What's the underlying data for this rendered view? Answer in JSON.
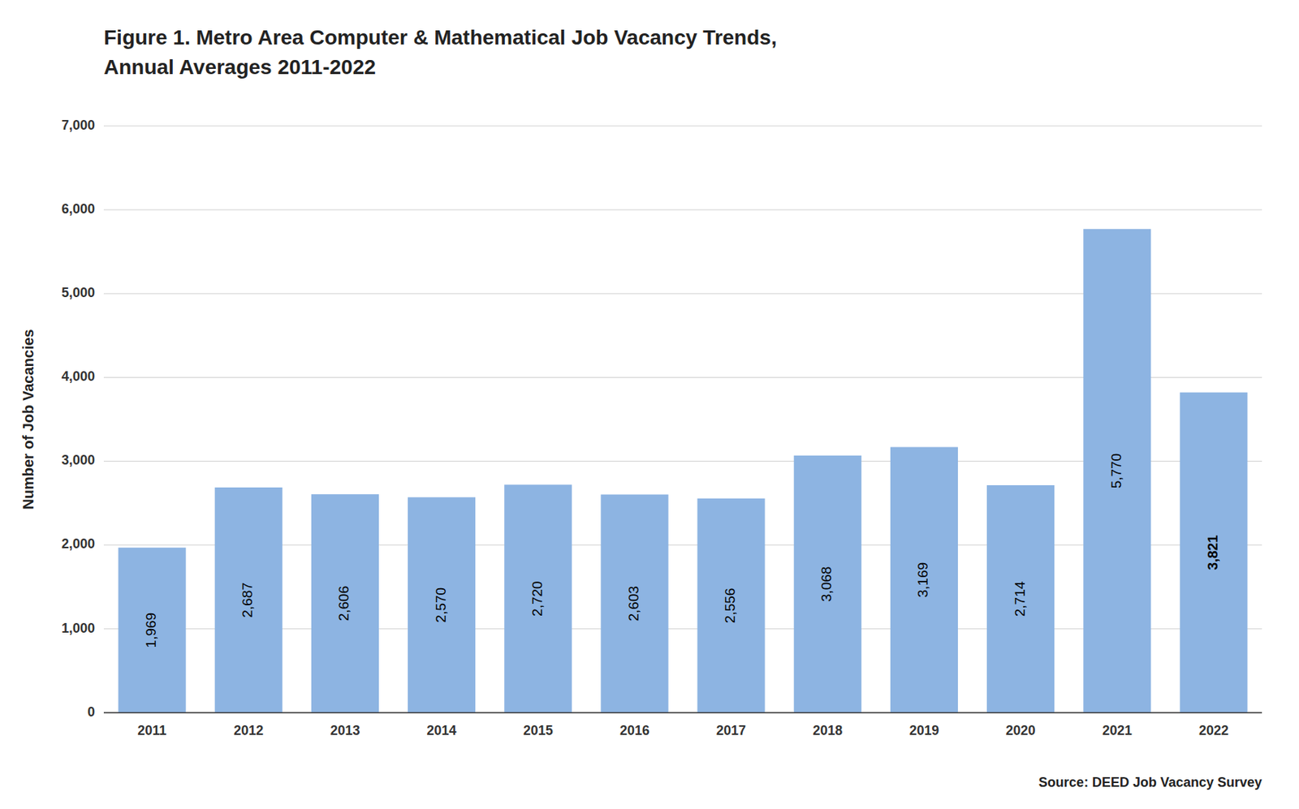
{
  "chart_data": {
    "type": "bar",
    "title": "Figure 1. Metro Area Computer & Mathematical Job Vacancy Trends,",
    "subtitle": "Annual Averages 2011-2022",
    "ylabel": "Number of Job Vacancies",
    "annotations": [
      "Source: DEED Job Vacancy Survey"
    ],
    "categories": [
      "2011",
      "2012",
      "2013",
      "2014",
      "2015",
      "2016",
      "2017",
      "2018",
      "2019",
      "2020",
      "2021",
      "2022"
    ],
    "values": [
      1969,
      2687,
      2606,
      2570,
      2720,
      2603,
      2556,
      3068,
      3169,
      2714,
      5770,
      3821
    ],
    "value_labels": [
      "1,969",
      "2,687",
      "2,606",
      "2,570",
      "2,720",
      "2,603",
      "2,556",
      "3,068",
      "3,169",
      "2,714",
      "5,770",
      "3,821"
    ],
    "data_labels": true,
    "color": "#8DB4E2",
    "ylim": [
      0,
      7000
    ],
    "yticks": [
      0,
      {
        "value": 1000,
        "label": "1,000"
      },
      {
        "value": 2000,
        "label": "2,000"
      },
      {
        "value": 3000,
        "label": "3,000"
      },
      {
        "value": 4000,
        "label": "4,000"
      },
      {
        "value": 5000,
        "label": "5,000"
      },
      {
        "value": 6000,
        "label": "6,000"
      },
      {
        "value": 7000,
        "label": "7,000"
      }
    ],
    "grid": true
  }
}
